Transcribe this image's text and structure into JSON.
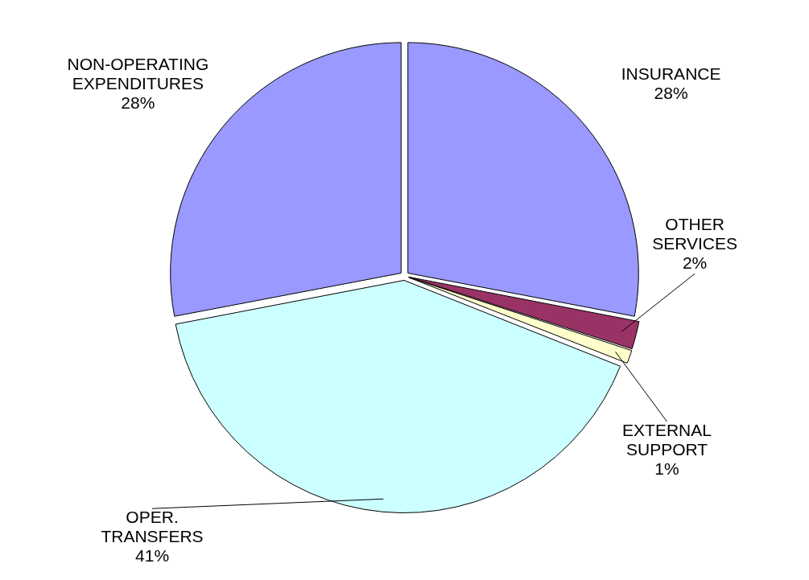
{
  "chart_data": {
    "type": "pie",
    "categories": [
      "INSURANCE",
      "OTHER SERVICES",
      "EXTERNAL SUPPORT",
      "OPER. TRANSFERS",
      "NON-OPERATING EXPENDITURES"
    ],
    "values": [
      28,
      2,
      1,
      41,
      28
    ],
    "value_labels": [
      "28%",
      "2%",
      "1%",
      "41%",
      "28%"
    ],
    "colors": [
      "#9999ff",
      "#993366",
      "#ffffcc",
      "#ccffff",
      "#9999ff"
    ],
    "legend": false
  }
}
